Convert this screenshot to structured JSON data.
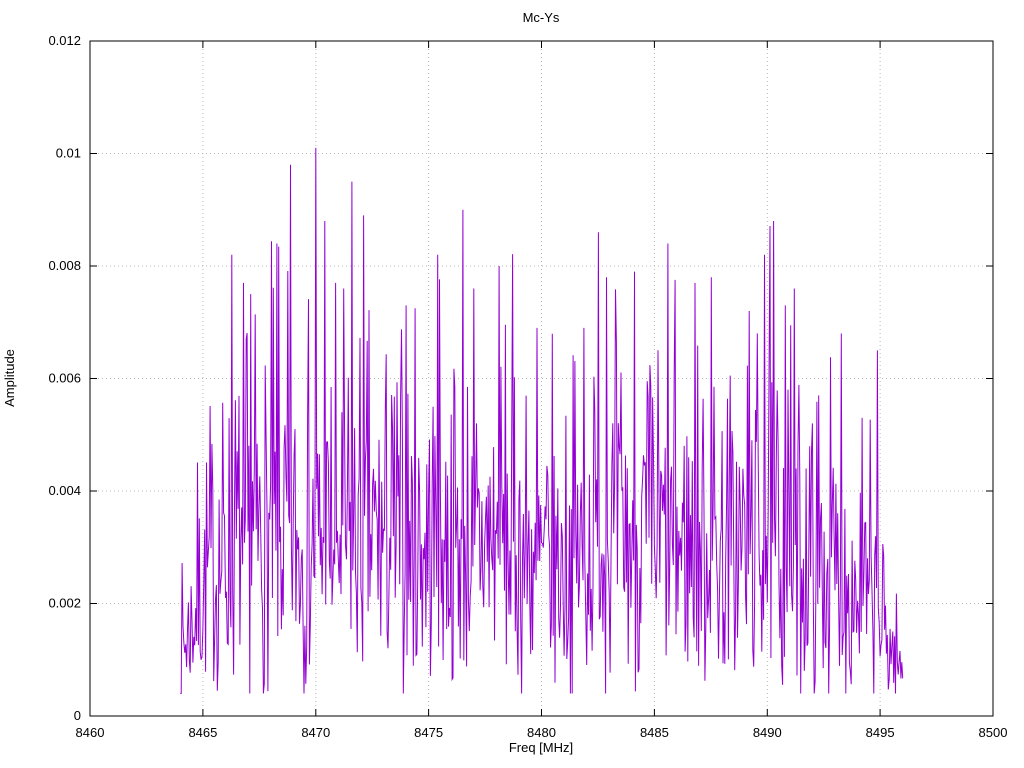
{
  "chart_data": {
    "type": "line",
    "title": "Mc-Ys",
    "xlabel": "Freq [MHz]",
    "ylabel": "Amplitude",
    "xlim": [
      8460,
      8500
    ],
    "ylim": [
      0,
      0.012
    ],
    "x_ticks": [
      8460,
      8465,
      8470,
      8475,
      8480,
      8485,
      8490,
      8495,
      8500
    ],
    "x_tick_labels": [
      "8460",
      "8465",
      "8470",
      "8475",
      "8480",
      "8485",
      "8490",
      "8495",
      "8500"
    ],
    "y_ticks": [
      0,
      0.002,
      0.004,
      0.006,
      0.008,
      0.01,
      0.012
    ],
    "y_tick_labels": [
      "0",
      "0.002",
      "0.004",
      "0.006",
      "0.008",
      "0.01",
      "0.012"
    ],
    "grid": true,
    "legend": "none",
    "line_color": "#9400d3",
    "grid_color": "#b8b8b8",
    "border_color": "#000000",
    "background_color": "#ffffff",
    "series_name": "Mc-Ys",
    "signal": {
      "description": "Dense noise-like FFT magnitude spectrum occupying 8464-8496 MHz, typical amplitude 0.001-0.006, occasional spikes to 0.008-0.0101, max peak 0.0101 near 8470 MHz",
      "x_start": 8464.0,
      "x_end": 8496.0,
      "x_step": 0.04,
      "seed": 7,
      "noise_sigma": 0.0026,
      "sigma_ref": 0.0085,
      "y_floor": 0.0004,
      "envelope": [
        [
          8464.0,
          0.003
        ],
        [
          8464.6,
          0.0048
        ],
        [
          8465.2,
          0.0068
        ],
        [
          8466.5,
          0.0082
        ],
        [
          8468.5,
          0.0098
        ],
        [
          8470.0,
          0.0101
        ],
        [
          8471.5,
          0.0095
        ],
        [
          8473.0,
          0.0089
        ],
        [
          8476.5,
          0.0091
        ],
        [
          8479.0,
          0.0081
        ],
        [
          8480.5,
          0.0069
        ],
        [
          8482.5,
          0.0086
        ],
        [
          8485.6,
          0.0084
        ],
        [
          8488.0,
          0.0078
        ],
        [
          8490.0,
          0.0088
        ],
        [
          8491.5,
          0.0077
        ],
        [
          8493.3,
          0.0068
        ],
        [
          8494.8,
          0.005
        ],
        [
          8495.5,
          0.0032
        ],
        [
          8496.0,
          0.002
        ]
      ],
      "peaks": [
        [
          8466.3,
          0.0082
        ],
        [
          8466.8,
          0.0077
        ],
        [
          8467.1,
          0.0075
        ],
        [
          8468.3,
          0.0084
        ],
        [
          8468.9,
          0.0098
        ],
        [
          8470.0,
          0.0101
        ],
        [
          8470.4,
          0.0088
        ],
        [
          8470.9,
          0.0077
        ],
        [
          8471.6,
          0.0095
        ],
        [
          8472.1,
          0.0089
        ],
        [
          8474.0,
          0.0073
        ],
        [
          8475.4,
          0.0082
        ],
        [
          8476.5,
          0.009
        ],
        [
          8477.0,
          0.0076
        ],
        [
          8478.1,
          0.008
        ],
        [
          8479.8,
          0.0069
        ],
        [
          8481.9,
          0.0069
        ],
        [
          8482.5,
          0.0086
        ],
        [
          8482.9,
          0.0078
        ],
        [
          8484.1,
          0.0079
        ],
        [
          8485.6,
          0.0084
        ],
        [
          8486.8,
          0.0077
        ],
        [
          8487.5,
          0.0078
        ],
        [
          8489.2,
          0.0072
        ],
        [
          8489.9,
          0.0082
        ],
        [
          8490.3,
          0.0088
        ],
        [
          8490.8,
          0.0073
        ],
        [
          8491.2,
          0.0076
        ],
        [
          8492.3,
          0.0057
        ],
        [
          8493.3,
          0.0068
        ],
        [
          8494.2,
          0.0053
        ],
        [
          8494.9,
          0.0065
        ]
      ]
    }
  }
}
